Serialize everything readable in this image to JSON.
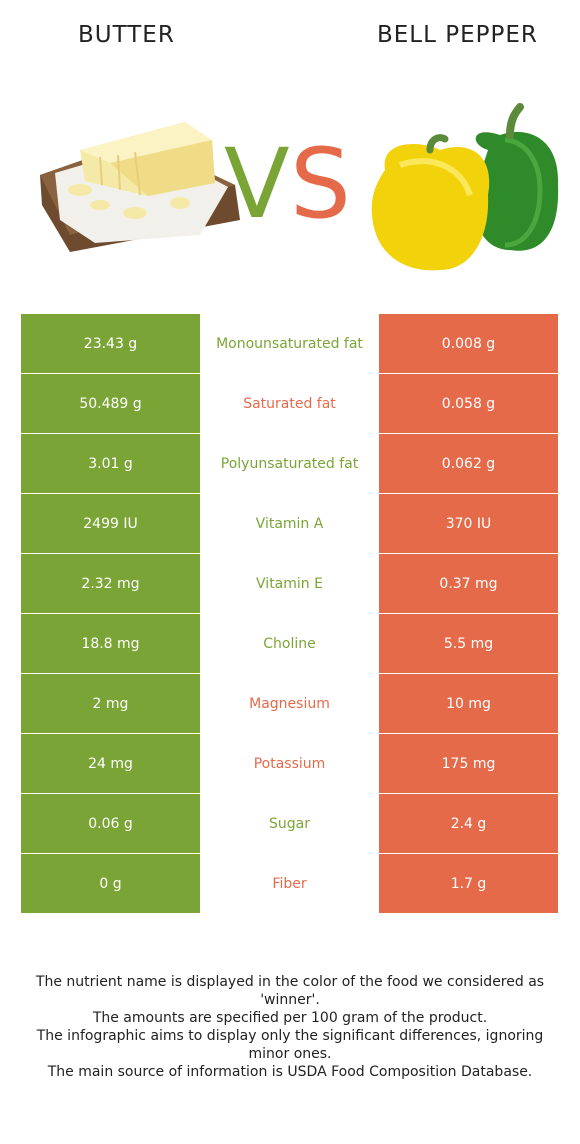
{
  "foods": {
    "left": {
      "name": "BUTTER",
      "color": "#7aa536"
    },
    "right": {
      "name": "BELL PEPPER",
      "color": "#e56a4a"
    }
  },
  "vs": {
    "v": "V",
    "s": "S"
  },
  "rows": [
    {
      "left": "23.43 g",
      "nutrient": "Monounsaturated fat",
      "right": "0.008 g",
      "winner": "left"
    },
    {
      "left": "50.489 g",
      "nutrient": "Saturated fat",
      "right": "0.058 g",
      "winner": "right"
    },
    {
      "left": "3.01 g",
      "nutrient": "Polyunsaturated fat",
      "right": "0.062 g",
      "winner": "left"
    },
    {
      "left": "2499 IU",
      "nutrient": "Vitamin A",
      "right": "370 IU",
      "winner": "left"
    },
    {
      "left": "2.32 mg",
      "nutrient": "Vitamin E",
      "right": "0.37 mg",
      "winner": "left"
    },
    {
      "left": "18.8 mg",
      "nutrient": "Choline",
      "right": "5.5 mg",
      "winner": "left"
    },
    {
      "left": "2 mg",
      "nutrient": "Magnesium",
      "right": "10 mg",
      "winner": "right"
    },
    {
      "left": "24 mg",
      "nutrient": "Potassium",
      "right": "175 mg",
      "winner": "right"
    },
    {
      "left": "0.06 g",
      "nutrient": "Sugar",
      "right": "2.4 g",
      "winner": "left"
    },
    {
      "left": "0 g",
      "nutrient": "Fiber",
      "right": "1.7 g",
      "winner": "right"
    }
  ],
  "notes": [
    "The nutrient name is displayed in the color of the food we considered as 'winner'.",
    "The amounts are specified per 100 gram of the product.",
    "The infographic aims to display only the significant differences, ignoring minor ones.",
    "The main source of information is USDA Food Composition Database."
  ]
}
